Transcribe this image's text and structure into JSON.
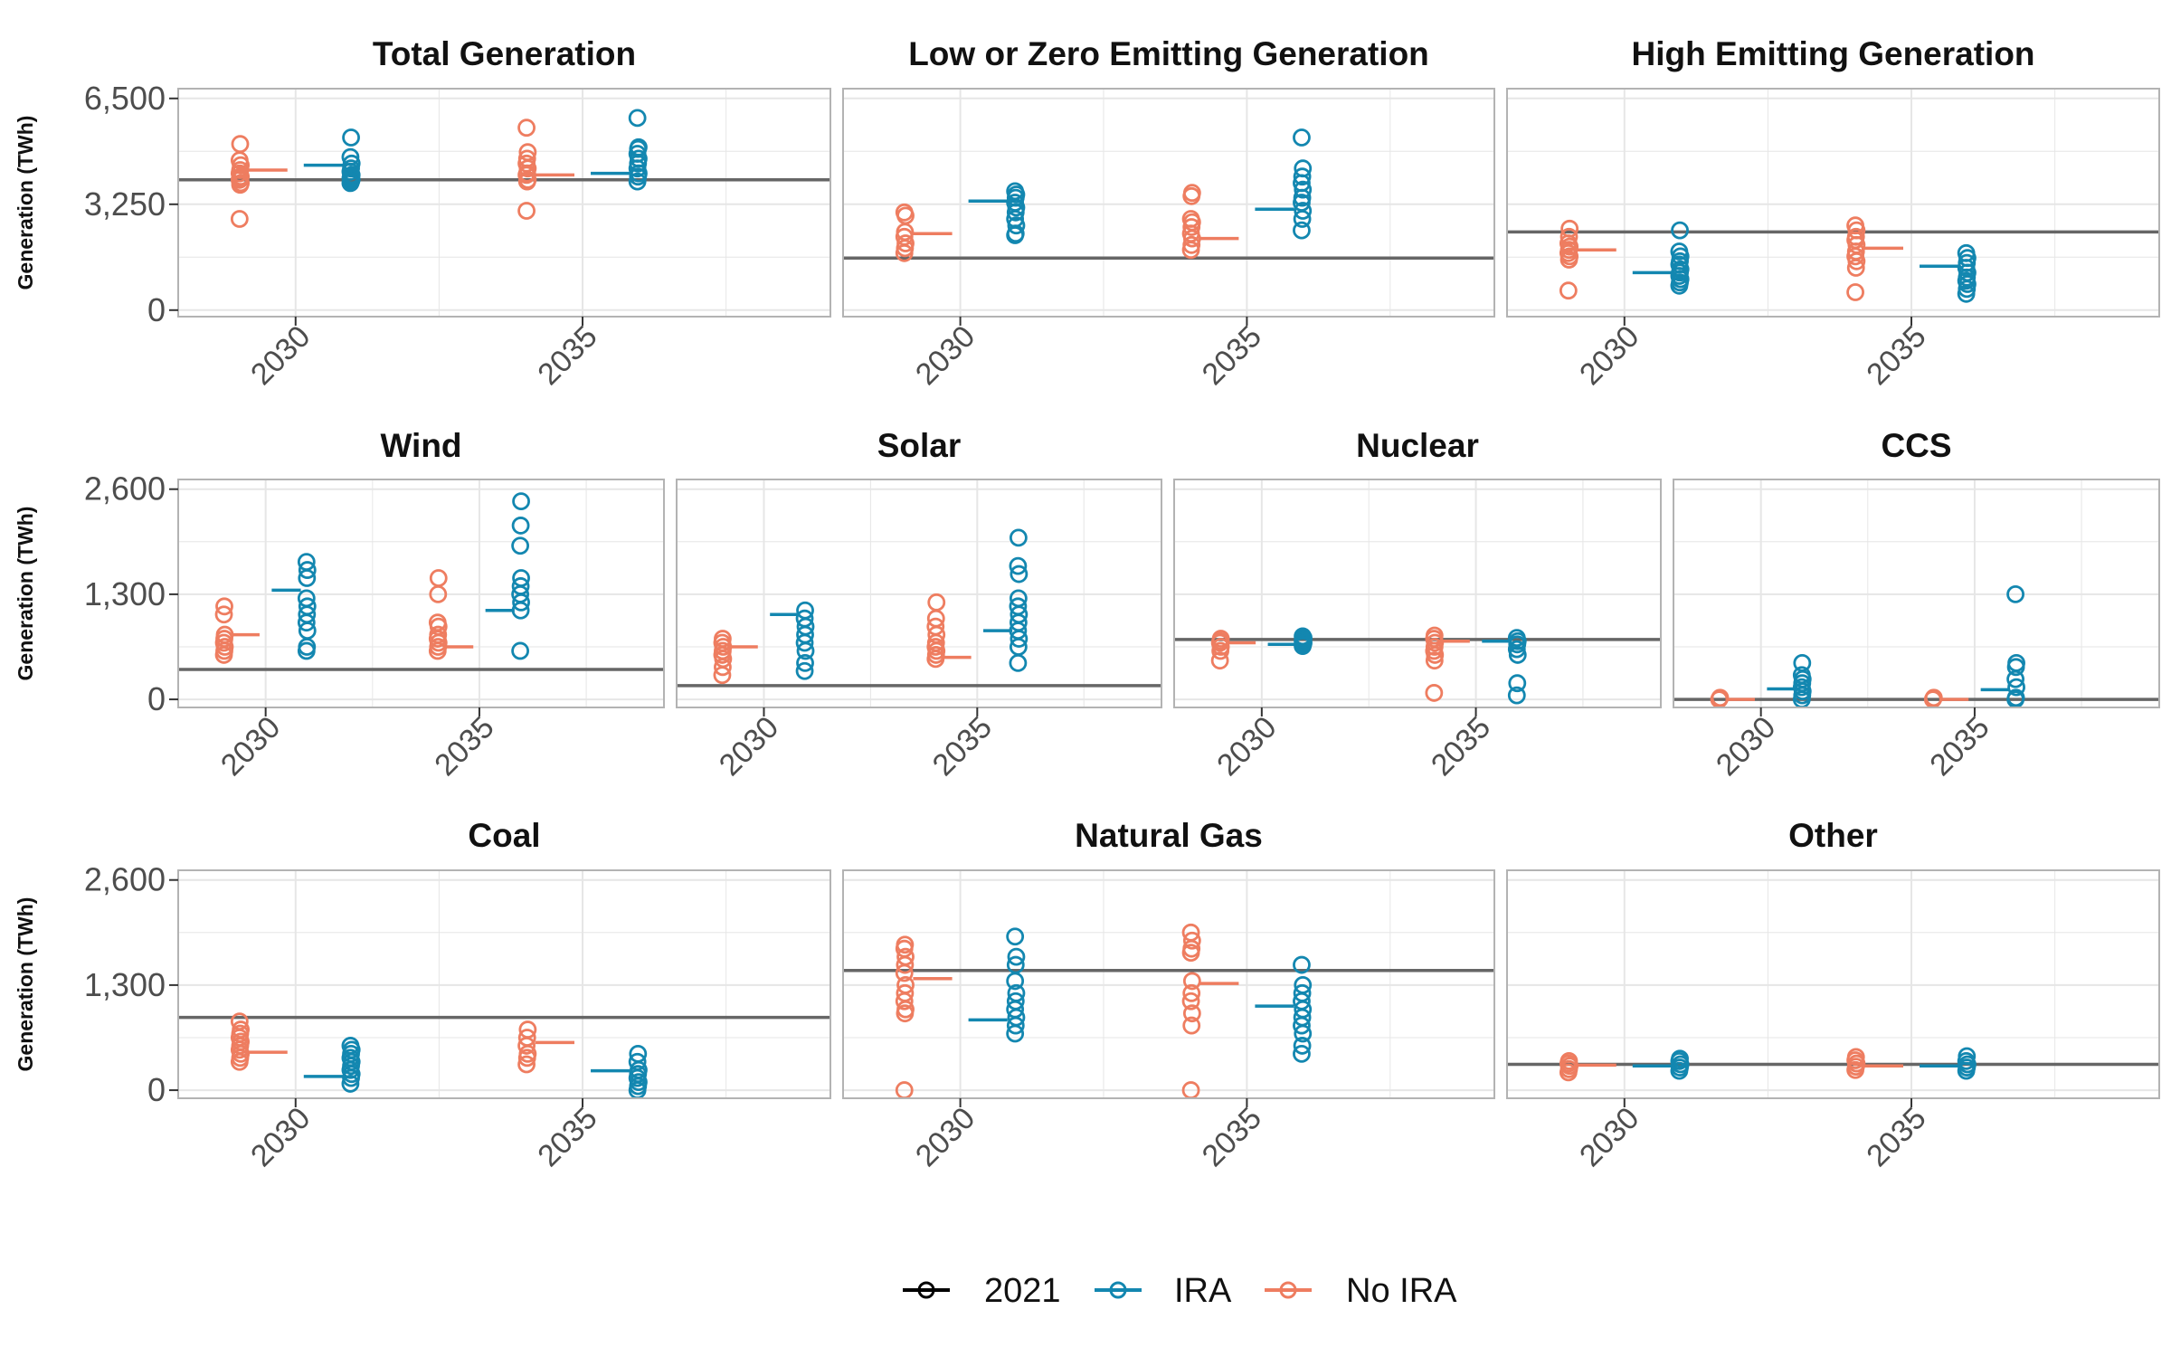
{
  "chart_data": {
    "type": "scatter",
    "ylabel": "Generation (TWh)",
    "x_categories": [
      "2030",
      "2035"
    ],
    "legend": {
      "placement": "bottom",
      "entries": [
        {
          "key": "2021",
          "label": "2021",
          "color": "#000000"
        },
        {
          "key": "IRA",
          "label": "IRA",
          "color": "#1387b0"
        },
        {
          "key": "NoIRA",
          "label": "No IRA",
          "color": "#ee7d60"
        }
      ]
    },
    "colors": {
      "ref_line": "#666666",
      "IRA": "#1387b0",
      "NoIRA": "#ee7d60",
      "grid": "#e6e6e6",
      "border": "#b3b3b3"
    },
    "rows": [
      {
        "ylim": [
          -200,
          6800
        ],
        "yticks": [
          0,
          3250,
          6500
        ],
        "ytick_labels": [
          "0",
          "3,250",
          "6,500"
        ],
        "panels": [
          {
            "title": "Total Generation",
            "ref_2021": 4000,
            "years": [
              {
                "year": "2030",
                "NoIRA": {
                  "median": 4300,
                  "points": [
                    2800,
                    3850,
                    3900,
                    4000,
                    4050,
                    4100,
                    4200,
                    4300,
                    4450,
                    4600,
                    5100
                  ]
                },
                "IRA": {
                  "median": 4450,
                  "points": [
                    3900,
                    3950,
                    4000,
                    4050,
                    4100,
                    4150,
                    4250,
                    4350,
                    4500,
                    4700,
                    5300
                  ]
                }
              },
              {
                "year": "2035",
                "NoIRA": {
                  "median": 4150,
                  "points": [
                    3050,
                    3950,
                    4000,
                    4150,
                    4200,
                    4350,
                    4500,
                    4650,
                    4850,
                    5600
                  ]
                },
                "IRA": {
                  "median": 4200,
                  "points": [
                    3950,
                    4100,
                    4200,
                    4350,
                    4500,
                    4650,
                    4800,
                    4950,
                    5000,
                    5900
                  ]
                }
              }
            ]
          },
          {
            "title": "Low or Zero Emitting Generation",
            "ref_2021": 1600,
            "years": [
              {
                "year": "2030",
                "NoIRA": {
                  "median": 2350,
                  "points": [
                    1750,
                    1900,
                    2050,
                    2250,
                    2400,
                    2900,
                    3000
                  ]
                },
                "IRA": {
                  "median": 3350,
                  "points": [
                    2300,
                    2350,
                    2600,
                    2800,
                    3000,
                    3150,
                    3300,
                    3450,
                    3550,
                    3650
                  ]
                }
              },
              {
                "year": "2035",
                "NoIRA": {
                  "median": 2200,
                  "points": [
                    1850,
                    2000,
                    2200,
                    2350,
                    2550,
                    2700,
                    2800,
                    3500,
                    3600
                  ]
                },
                "IRA": {
                  "median": 3100,
                  "points": [
                    2450,
                    2800,
                    3050,
                    3300,
                    3450,
                    3700,
                    3900,
                    4100,
                    4350,
                    5300
                  ]
                }
              }
            ]
          },
          {
            "title": "High Emitting Generation",
            "ref_2021": 2400,
            "years": [
              {
                "year": "2030",
                "NoIRA": {
                  "median": 1850,
                  "points": [
                    600,
                    1550,
                    1650,
                    1750,
                    1850,
                    1950,
                    2050,
                    2250,
                    2500
                  ]
                },
                "IRA": {
                  "median": 1150,
                  "points": [
                    750,
                    850,
                    950,
                    1050,
                    1150,
                    1250,
                    1400,
                    1500,
                    1650,
                    1800,
                    2450
                  ]
                }
              },
              {
                "year": "2035",
                "NoIRA": {
                  "median": 1900,
                  "points": [
                    550,
                    1300,
                    1500,
                    1650,
                    1800,
                    2000,
                    2150,
                    2250,
                    2450,
                    2600
                  ]
                },
                "IRA": {
                  "median": 1350,
                  "points": [
                    500,
                    650,
                    800,
                    900,
                    1000,
                    1150,
                    1300,
                    1450,
                    1600,
                    1750
                  ]
                }
              }
            ]
          }
        ]
      },
      {
        "ylim": [
          -100,
          2720
        ],
        "yticks": [
          0,
          1300,
          2600
        ],
        "ytick_labels": [
          "0",
          "1,300",
          "2,600"
        ],
        "panels": [
          {
            "title": "Wind",
            "ref_2021": 370,
            "years": [
              {
                "year": "2030",
                "NoIRA": {
                  "median": 800,
                  "points": [
                    550,
                    600,
                    650,
                    700,
                    750,
                    800,
                    1050,
                    1150
                  ]
                },
                "IRA": {
                  "median": 1350,
                  "points": [
                    600,
                    650,
                    850,
                    950,
                    1050,
                    1150,
                    1250,
                    1500,
                    1600,
                    1700
                  ]
                }
              },
              {
                "year": "2035",
                "NoIRA": {
                  "median": 650,
                  "points": [
                    600,
                    650,
                    700,
                    750,
                    800,
                    900,
                    950,
                    1300,
                    1500
                  ]
                },
                "IRA": {
                  "median": 1100,
                  "points": [
                    600,
                    1100,
                    1200,
                    1300,
                    1400,
                    1500,
                    1900,
                    2150,
                    2450
                  ]
                }
              }
            ]
          },
          {
            "title": "Solar",
            "ref_2021": 170,
            "years": [
              {
                "year": "2030",
                "NoIRA": {
                  "median": 650,
                  "points": [
                    300,
                    400,
                    500,
                    550,
                    600,
                    650,
                    700,
                    750
                  ]
                },
                "IRA": {
                  "median": 1050,
                  "points": [
                    350,
                    450,
                    600,
                    700,
                    800,
                    900,
                    1000,
                    1100
                  ]
                }
              },
              {
                "year": "2035",
                "NoIRA": {
                  "median": 520,
                  "points": [
                    500,
                    550,
                    600,
                    650,
                    700,
                    800,
                    900,
                    1000,
                    1200
                  ]
                },
                "IRA": {
                  "median": 850,
                  "points": [
                    450,
                    650,
                    750,
                    850,
                    950,
                    1050,
                    1150,
                    1250,
                    1550,
                    1650,
                    2000
                  ]
                }
              }
            ]
          },
          {
            "title": "Nuclear",
            "ref_2021": 740,
            "years": [
              {
                "year": "2030",
                "NoIRA": {
                  "median": 700,
                  "points": [
                    480,
                    600,
                    650,
                    700,
                    720,
                    750
                  ]
                },
                "IRA": {
                  "median": 680,
                  "points": [
                    660,
                    680,
                    700,
                    720,
                    740,
                    760,
                    780
                  ]
                }
              },
              {
                "year": "2035",
                "NoIRA": {
                  "median": 720,
                  "points": [
                    80,
                    480,
                    550,
                    600,
                    650,
                    700,
                    750,
                    790
                  ]
                },
                "IRA": {
                  "median": 720,
                  "points": [
                    50,
                    200,
                    550,
                    620,
                    680,
                    720,
                    760
                  ]
                }
              }
            ]
          },
          {
            "title": "CCS",
            "ref_2021": 0,
            "years": [
              {
                "year": "2030",
                "NoIRA": {
                  "median": 0,
                  "points": [
                    0,
                    10,
                    20
                  ]
                },
                "IRA": {
                  "median": 130,
                  "points": [
                    0,
                    50,
                    100,
                    150,
                    200,
                    250,
                    300,
                    450
                  ]
                }
              },
              {
                "year": "2035",
                "NoIRA": {
                  "median": 0,
                  "points": [
                    0,
                    10,
                    20
                  ]
                },
                "IRA": {
                  "median": 120,
                  "points": [
                    0,
                    20,
                    150,
                    250,
                    400,
                    450,
                    1300
                  ]
                }
              }
            ]
          }
        ]
      },
      {
        "ylim": [
          -100,
          2720
        ],
        "yticks": [
          0,
          1300,
          2600
        ],
        "ytick_labels": [
          "0",
          "1,300",
          "2,600"
        ],
        "panels": [
          {
            "title": "Coal",
            "ref_2021": 900,
            "years": [
              {
                "year": "2030",
                "NoIRA": {
                  "median": 470,
                  "points": [
                    350,
                    400,
                    450,
                    500,
                    550,
                    600,
                    650,
                    700,
                    750,
                    850
                  ]
                },
                "IRA": {
                  "median": 170,
                  "points": [
                    80,
                    150,
                    200,
                    250,
                    300,
                    350,
                    400,
                    450,
                    500,
                    550
                  ]
                }
              },
              {
                "year": "2035",
                "NoIRA": {
                  "median": 590,
                  "points": [
                    320,
                    400,
                    450,
                    550,
                    650,
                    750
                  ]
                },
                "IRA": {
                  "median": 240,
                  "points": [
                    0,
                    50,
                    100,
                    150,
                    200,
                    250,
                    350,
                    450
                  ]
                }
              }
            ]
          },
          {
            "title": "Natural Gas",
            "ref_2021": 1480,
            "years": [
              {
                "year": "2030",
                "NoIRA": {
                  "median": 1380,
                  "points": [
                    0,
                    950,
                    1000,
                    1100,
                    1200,
                    1300,
                    1450,
                    1550,
                    1650,
                    1750,
                    1800
                  ]
                },
                "IRA": {
                  "median": 870,
                  "points": [
                    700,
                    800,
                    900,
                    1000,
                    1100,
                    1200,
                    1350,
                    1550,
                    1650,
                    1900
                  ]
                }
              },
              {
                "year": "2035",
                "NoIRA": {
                  "median": 1320,
                  "points": [
                    0,
                    800,
                    950,
                    1100,
                    1200,
                    1350,
                    1700,
                    1750,
                    1850,
                    1950
                  ]
                },
                "IRA": {
                  "median": 1040,
                  "points": [
                    450,
                    550,
                    700,
                    800,
                    900,
                    1000,
                    1100,
                    1200,
                    1300,
                    1550
                  ]
                }
              }
            ]
          },
          {
            "title": "Other",
            "ref_2021": 320,
            "years": [
              {
                "year": "2030",
                "NoIRA": {
                  "median": 310,
                  "points": [
                    220,
                    260,
                    300,
                    330,
                    360
                  ]
                },
                "IRA": {
                  "median": 300,
                  "points": [
                    240,
                    280,
                    320,
                    360,
                    390
                  ]
                }
              },
              {
                "year": "2035",
                "NoIRA": {
                  "median": 300,
                  "points": [
                    250,
                    290,
                    330,
                    370,
                    410
                  ]
                },
                "IRA": {
                  "median": 300,
                  "points": [
                    240,
                    280,
                    320,
                    360,
                    420
                  ]
                }
              }
            ]
          }
        ]
      }
    ]
  }
}
